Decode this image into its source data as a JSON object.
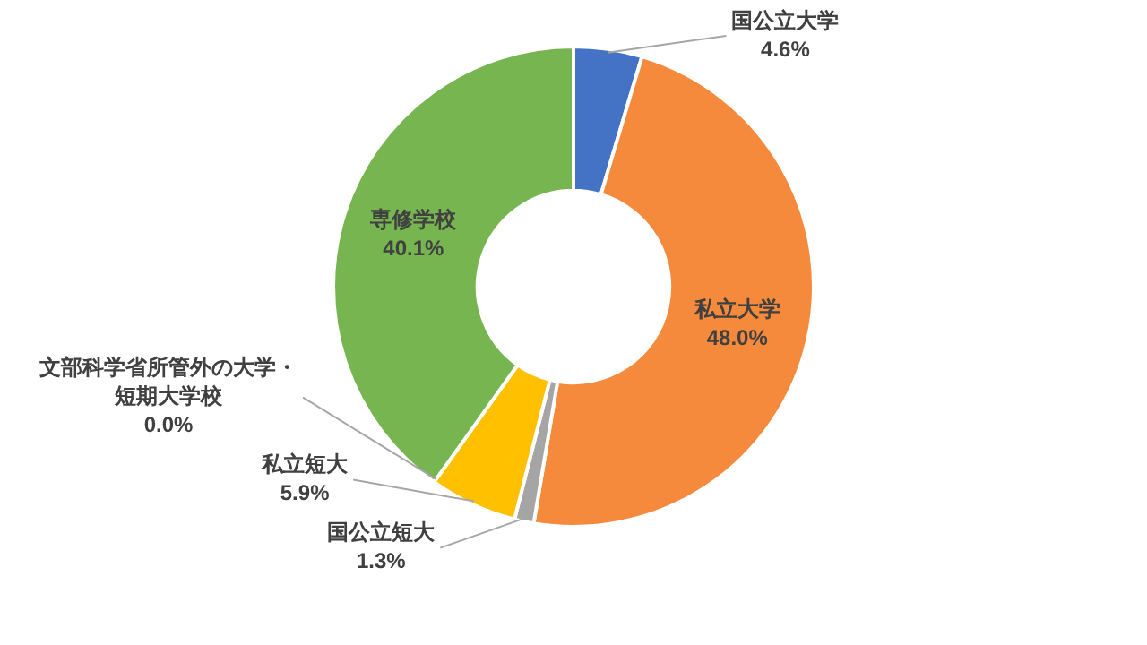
{
  "chart_data": {
    "type": "donut",
    "categories": [
      "国公立大学",
      "私立大学",
      "国公立短大",
      "私立短大",
      "文部科学省所管外の大学・短期大学校",
      "専修学校"
    ],
    "values": [
      4.6,
      48.0,
      1.3,
      5.9,
      0.0,
      40.1
    ],
    "value_labels": [
      "4.6%",
      "48.0%",
      "1.3%",
      "5.9%",
      "0.0%",
      "40.1%"
    ],
    "colors": [
      "#4472c4",
      "#f58a3c",
      "#a5a5a5",
      "#ffc000",
      "#5b9bd5",
      "#77b550"
    ],
    "legend": false
  }
}
